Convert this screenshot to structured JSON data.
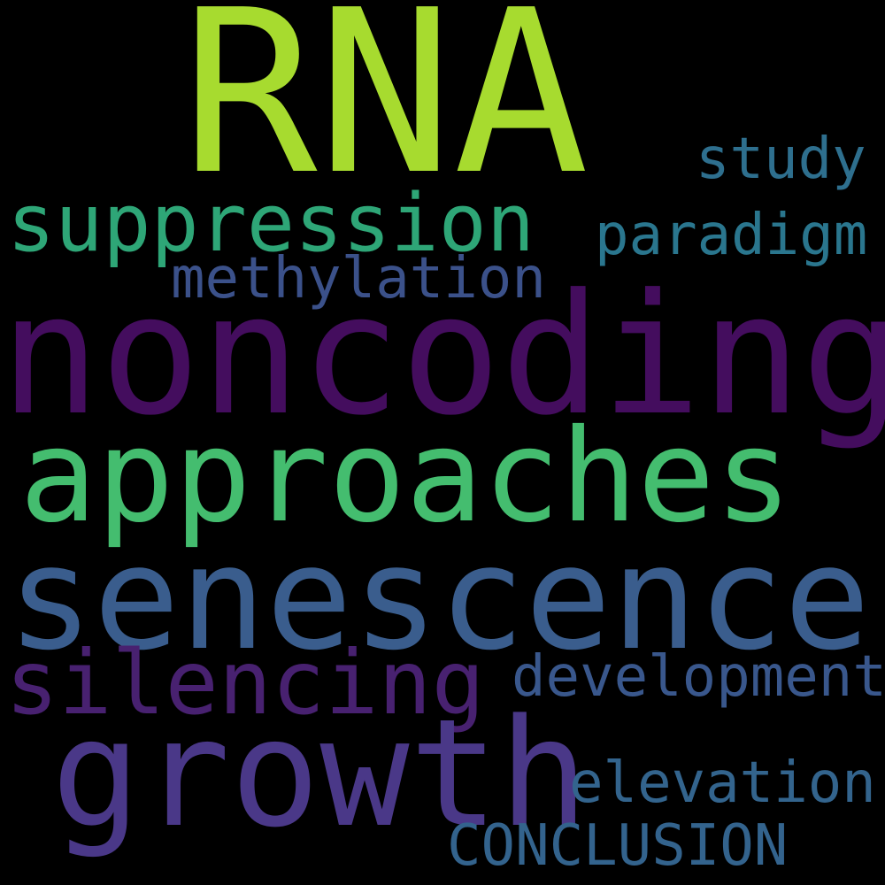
{
  "background_color": "#000000",
  "words": {
    "rna": {
      "text": "RNA",
      "color": "#a7db2f"
    },
    "noncoding": {
      "text": "noncoding",
      "color": "#440d5e"
    },
    "approaches": {
      "text": "approaches",
      "color": "#44bd6f"
    },
    "senescence": {
      "text": "senescence",
      "color": "#3a5d8d"
    },
    "growth": {
      "text": "growth",
      "color": "#4a3888"
    },
    "suppression": {
      "text": "suppression",
      "color": "#2ea677"
    },
    "silencing": {
      "text": "silencing",
      "color": "#482170"
    },
    "study": {
      "text": "study",
      "color": "#2e6f8e"
    },
    "paradigm": {
      "text": "paradigm",
      "color": "#2a768e"
    },
    "methylation": {
      "text": "methylation",
      "color": "#3b518a"
    },
    "development": {
      "text": "development",
      "color": "#39578c"
    },
    "elevation": {
      "text": "elevation",
      "color": "#33648d"
    },
    "conclusion": {
      "text": "CONCLUSION",
      "color": "#33638d"
    }
  }
}
